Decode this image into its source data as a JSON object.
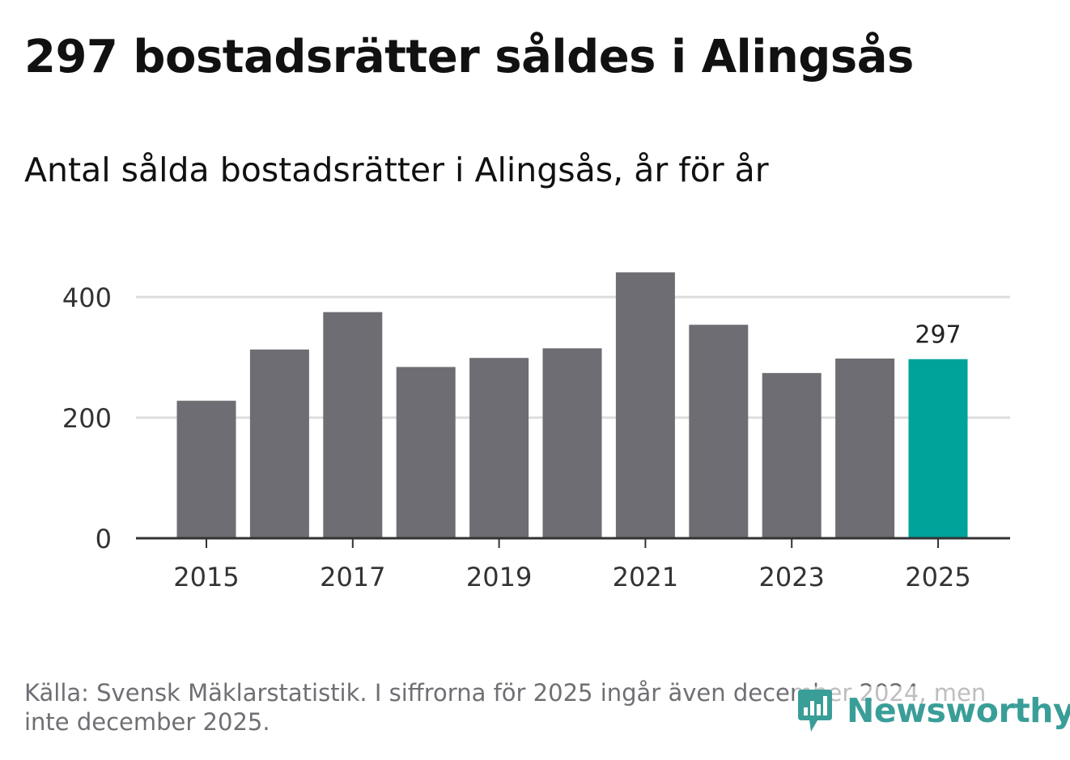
{
  "header": {
    "title": "297 bostadsrätter såldes i Alingsås",
    "subtitle": "Antal sålda bostadsrätter i Alingsås, år för år"
  },
  "footer": {
    "source": "Källa: Svensk Mäklarstatistik. I siffrorna för 2025 ingår även december 2024, men inte december 2025.",
    "brand": "Newsworthy"
  },
  "chart_data": {
    "type": "bar",
    "title": "Antal sålda bostadsrätter i Alingsås, år för år",
    "xlabel": "",
    "ylabel": "",
    "categories": [
      "2015",
      "2016",
      "2017",
      "2018",
      "2019",
      "2020",
      "2021",
      "2022",
      "2023",
      "2024",
      "2025"
    ],
    "values": [
      228,
      313,
      375,
      284,
      299,
      315,
      441,
      354,
      274,
      298,
      297
    ],
    "ylim": [
      0,
      400
    ],
    "yticks": [
      0,
      200,
      400
    ],
    "xtick_labels": [
      "2015",
      "2017",
      "2019",
      "2021",
      "2023",
      "2025"
    ],
    "grid": true,
    "highlight": {
      "category": "2025",
      "label": "297"
    },
    "colors": {
      "bar": "#6e6d73",
      "highlight": "#00a39a",
      "grid": "#dddddd",
      "axis": "#333333"
    }
  }
}
